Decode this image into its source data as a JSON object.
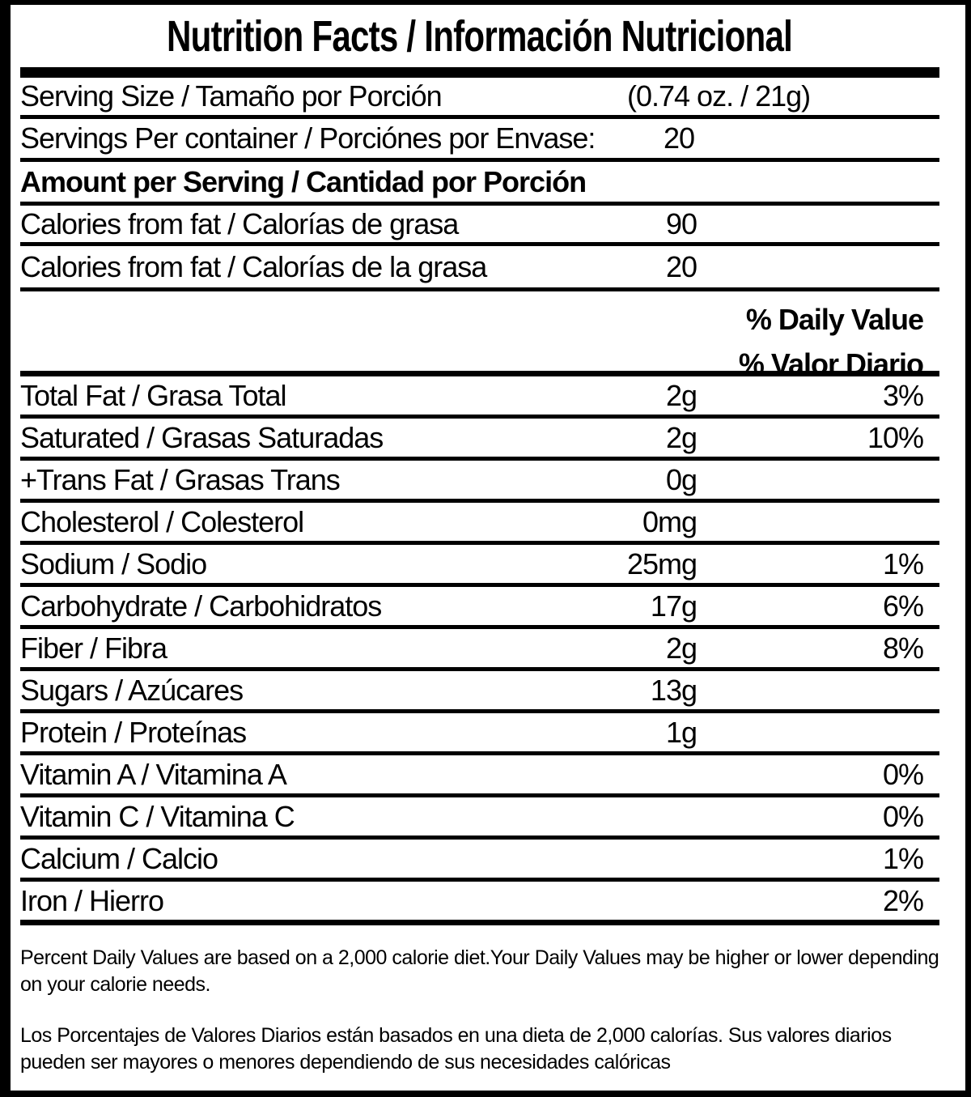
{
  "title": "Nutrition Facts / Información Nutricional",
  "serving": {
    "size_label": "Serving Size / Tamaño por Porción",
    "size_value": "(0.74 oz. / 21g)",
    "per_container_label": "Servings Per container / Porciónes por Envase:",
    "per_container_value": "20"
  },
  "amount_header": "Amount per Serving / Cantidad por Porción",
  "calories_rows": [
    {
      "label": "Calories from fat / Calorías de grasa",
      "value": "90"
    },
    {
      "label": "Calories from fat / Calorías de la grasa",
      "value": "20"
    }
  ],
  "daily_value_header": {
    "en": "% Daily Value",
    "es": "% Valor Diario"
  },
  "nutrients": [
    {
      "label": "Total Fat / Grasa Total",
      "amount": "2g",
      "dv": "3%"
    },
    {
      "label": "Saturated / Grasas Saturadas",
      "amount": "2g",
      "dv": "10%"
    },
    {
      "label": "+Trans Fat / Grasas Trans",
      "amount": "0g",
      "dv": ""
    },
    {
      "label": "Cholesterol / Colesterol",
      "amount": "0mg",
      "dv": ""
    },
    {
      "label": "Sodium / Sodio",
      "amount": "25mg",
      "dv": "1%"
    },
    {
      "label": "Carbohydrate / Carbohidratos",
      "amount": "17g",
      "dv": "6%"
    },
    {
      "label": "Fiber / Fibra",
      "amount": "2g",
      "dv": "8%"
    },
    {
      "label": "Sugars / Azúcares",
      "amount": "13g",
      "dv": ""
    },
    {
      "label": "Protein / Proteínas",
      "amount": "1g",
      "dv": ""
    },
    {
      "label": "Vitamin A / Vitamina A",
      "amount": "",
      "dv": "0%"
    },
    {
      "label": "Vitamin C / Vitamina C",
      "amount": "",
      "dv": "0%"
    },
    {
      "label": "Calcium / Calcio",
      "amount": "",
      "dv": "1%"
    },
    {
      "label": "Iron / Hierro",
      "amount": "",
      "dv": "2%"
    }
  ],
  "footnotes": {
    "en": "Percent Daily Values are based on a 2,000 calorie diet.Your Daily Values may be higher or lower depending on your calorie needs.",
    "es": "Los Porcentajes de Valores Diarios están basados en una dieta de 2,000 calorías. Sus valores diarios pueden ser mayores o menores dependiendo de sus necesidades calóricas"
  },
  "colors": {
    "ink": "#000000",
    "background": "#ffffff"
  }
}
